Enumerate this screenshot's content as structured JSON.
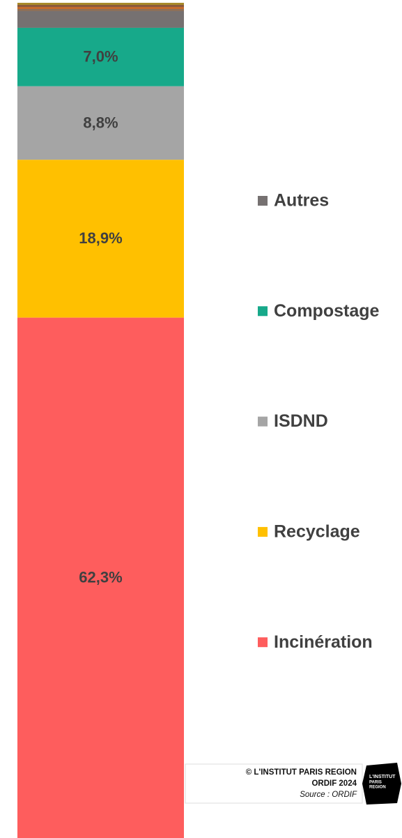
{
  "chart_data": {
    "type": "stacked_bar",
    "ylim": [
      0,
      100
    ],
    "series": [
      {
        "name": "Incinération",
        "color": "#fe5d5d",
        "values": [
          62.3
        ],
        "value_labels": [
          "62,3%"
        ]
      },
      {
        "name": "Recyclage",
        "color": "#ffc000",
        "values": [
          18.9
        ],
        "value_labels": [
          "18,9%"
        ]
      },
      {
        "name": "ISDND",
        "color": "#a5a5a5",
        "values": [
          8.8
        ],
        "value_labels": [
          "8,8%"
        ]
      },
      {
        "name": "Compostage",
        "color": "#17a98a",
        "values": [
          7.0
        ],
        "value_labels": [
          "7,0%"
        ]
      },
      {
        "name": "Autres",
        "color": "#767171",
        "values": [
          2.0
        ]
      },
      {
        "name": null,
        "color": "#8c6f58",
        "values": [
          0.25
        ]
      },
      {
        "name": null,
        "color": "#c46a2c",
        "values": [
          0.25
        ]
      },
      {
        "name": null,
        "color": "#8b5a3c",
        "values": [
          0.25
        ]
      },
      {
        "name": null,
        "color": "#a88a2a",
        "values": [
          0.25
        ]
      }
    ]
  },
  "credits": {
    "copyright": "© L'INSTITUT PARIS REGION",
    "edition": "ORDIF 2024",
    "source": "Source : ORDIF",
    "logo": [
      "L'INSTITUT",
      "PARIS",
      "REGION"
    ]
  }
}
